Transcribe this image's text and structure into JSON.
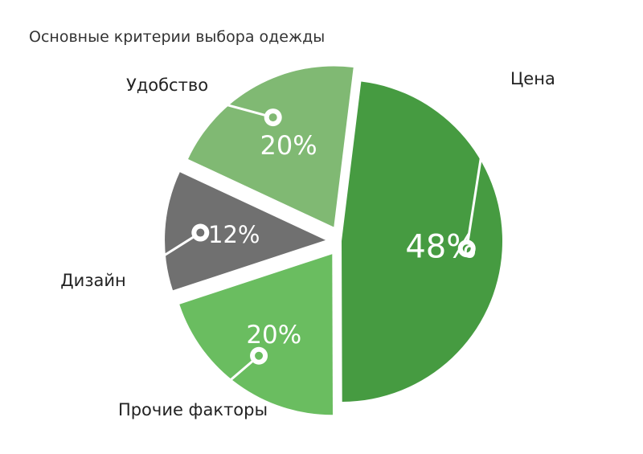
{
  "chart_data": {
    "type": "pie",
    "title": "Основные критерии выбора одежды",
    "slices": [
      {
        "label": "Цена",
        "value": 48,
        "display": "48%",
        "color": "#469b41"
      },
      {
        "label": "Прочие факторы",
        "value": 20,
        "display": "20%",
        "color": "#6abd60"
      },
      {
        "label": "Дизайн",
        "value": 12,
        "display": "12%",
        "color": "#707070"
      },
      {
        "label": "Удобство",
        "value": 20,
        "display": "20%",
        "color": "#80b973"
      }
    ],
    "legend": "none"
  }
}
